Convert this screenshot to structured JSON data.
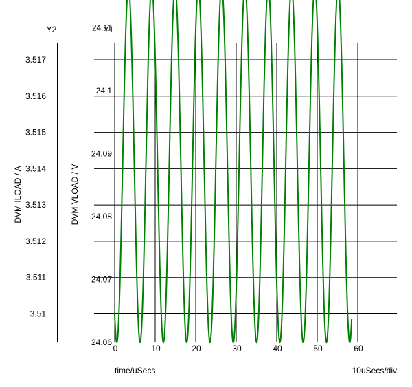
{
  "chart_data": {
    "type": "line",
    "xlabel": "time/uSecs",
    "x_scale_note": "10uSecs/div",
    "y1_axis": {
      "title": "Y1",
      "label": "DVM VLOAD / V",
      "ticks": [
        "24.06",
        "24.07",
        "24.08",
        "24.09",
        "24.1",
        "24.11"
      ],
      "ylim": [
        24.06,
        24.1165
      ]
    },
    "y2_axis": {
      "title": "Y2",
      "label": "DVM ILOAD / A",
      "ticks": [
        "3.51",
        "3.511",
        "3.512",
        "3.513",
        "3.514",
        "3.515",
        "3.516",
        "3.517"
      ],
      "ylim": [
        3.5092,
        3.5175
      ]
    },
    "x_axis": {
      "ticks": [
        "0",
        "10",
        "20",
        "30",
        "40",
        "50",
        "60"
      ],
      "xlim": [
        0,
        60
      ]
    },
    "grid": true,
    "series": [
      {
        "axis": "y1",
        "color": "#008000",
        "waveform": "sinusoid",
        "period_us": 5.75,
        "first_peak_us": 3.4,
        "min": 24.06,
        "max": 24.1165,
        "x_range": [
          0,
          58.5
        ]
      }
    ]
  }
}
